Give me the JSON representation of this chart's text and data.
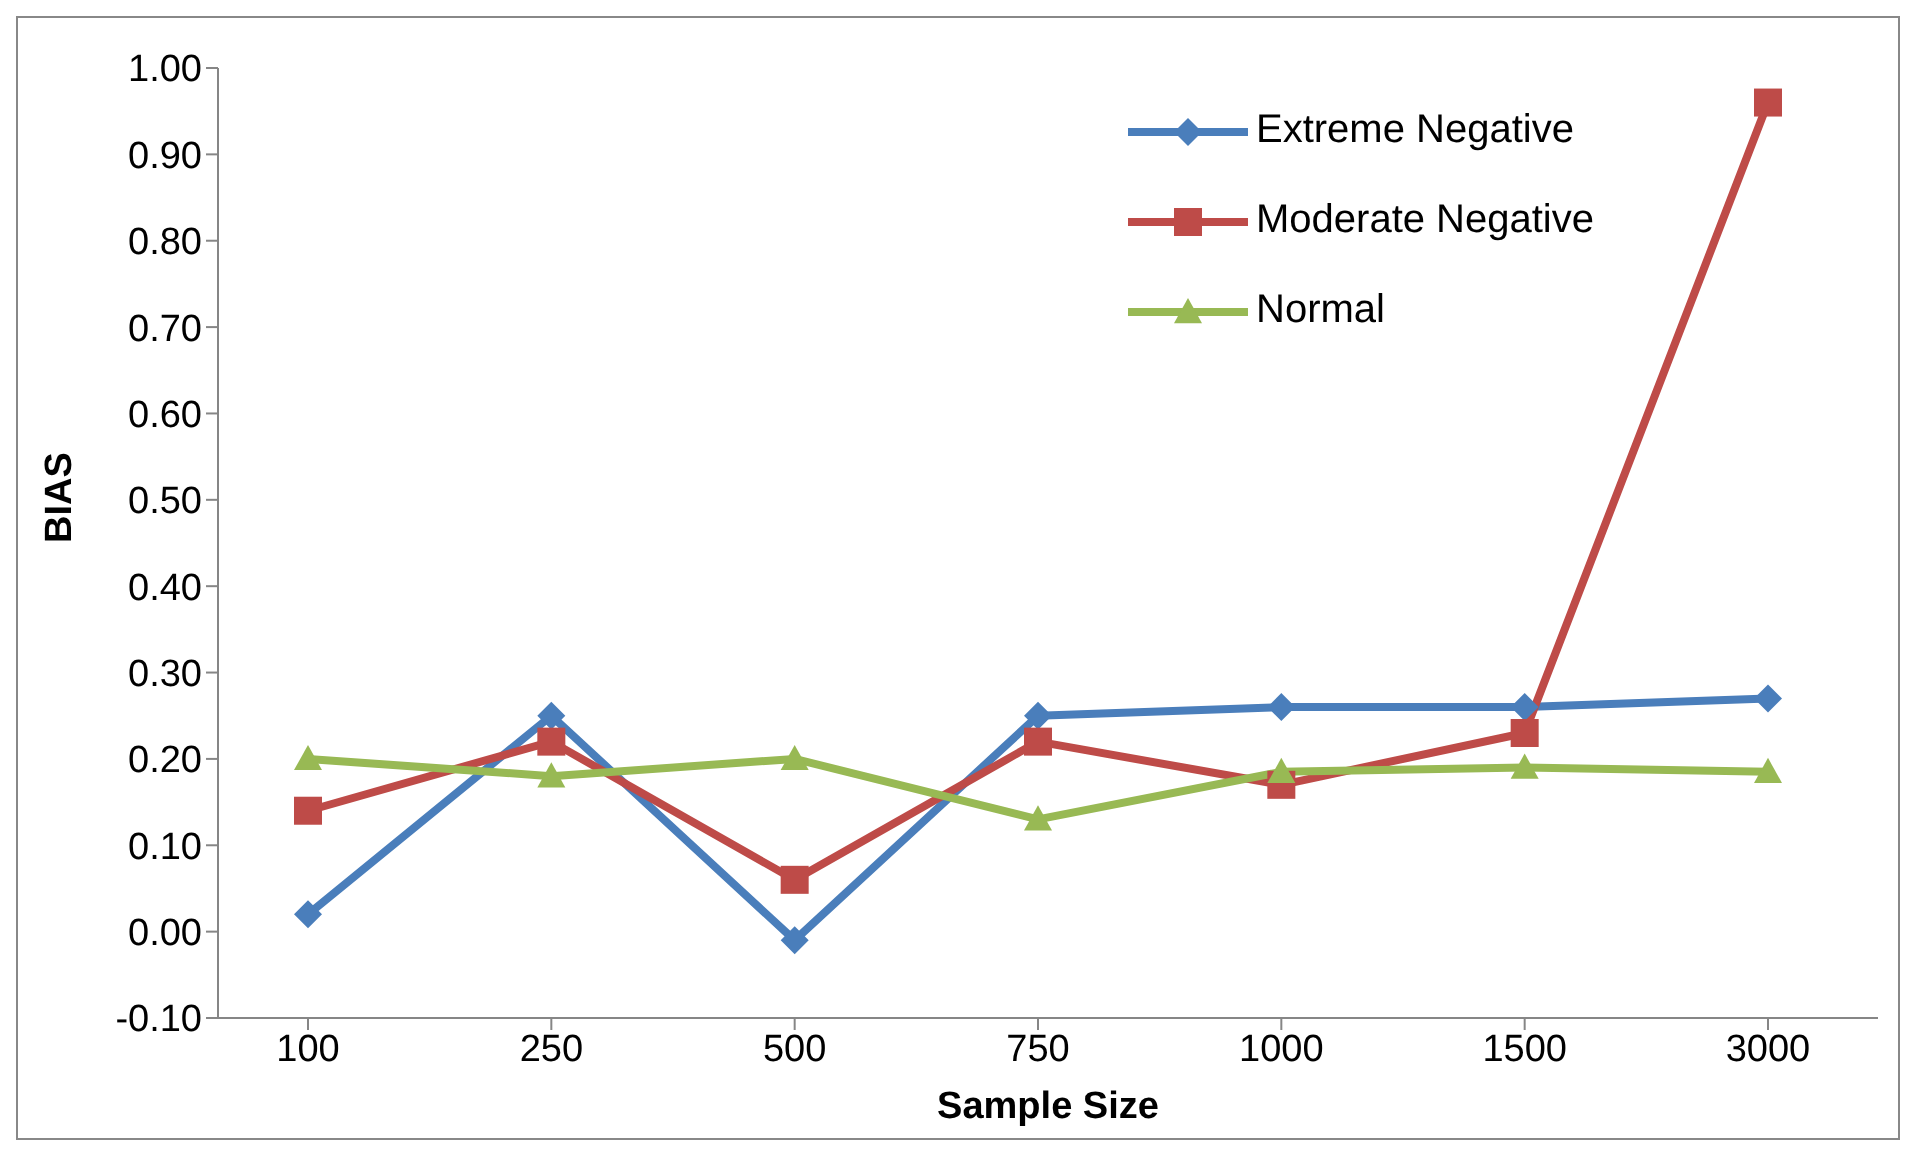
{
  "chart_data": {
    "type": "line",
    "xlabel": "Sample Size",
    "ylabel": "BIAS",
    "categories": [
      "100",
      "250",
      "500",
      "750",
      "1000",
      "1500",
      "3000"
    ],
    "series": [
      {
        "name": "Extreme Negative",
        "color": "#4a7ebb",
        "marker": "diamond",
        "values": [
          0.02,
          0.25,
          -0.01,
          0.25,
          0.26,
          0.26,
          0.27
        ]
      },
      {
        "name": "Moderate Negative",
        "color": "#be4b48",
        "marker": "square",
        "values": [
          0.14,
          0.22,
          0.06,
          0.22,
          0.17,
          0.23,
          0.96
        ]
      },
      {
        "name": "Normal",
        "color": "#98b954",
        "marker": "triangle",
        "values": [
          0.2,
          0.18,
          0.2,
          0.13,
          0.185,
          0.19,
          0.185
        ]
      }
    ],
    "ylim": [
      -0.1,
      1
    ],
    "yticks": [
      {
        "value": -0.1,
        "label": "-0.10"
      },
      {
        "value": 0,
        "label": "0.00"
      },
      {
        "value": 0.1,
        "label": "0.10"
      },
      {
        "value": 0.2,
        "label": "0.20"
      },
      {
        "value": 0.3,
        "label": "0.30"
      },
      {
        "value": 0.4,
        "label": "0.40"
      },
      {
        "value": 0.5,
        "label": "0.50"
      },
      {
        "value": 0.6,
        "label": "0.60"
      },
      {
        "value": 0.7,
        "label": "0.70"
      },
      {
        "value": 0.8,
        "label": "0.80"
      },
      {
        "value": 0.9,
        "label": "0.90"
      },
      {
        "value": 1,
        "label": "1.00"
      }
    ],
    "grid": false,
    "legend": "top right"
  }
}
